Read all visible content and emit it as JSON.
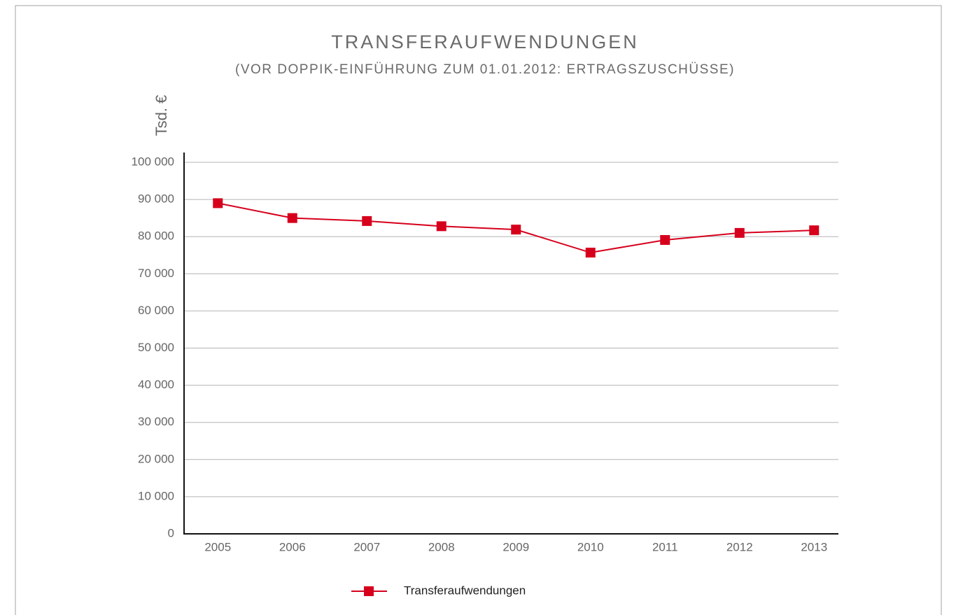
{
  "chart_data": {
    "type": "line",
    "title": "TRANSFERAUFWENDUNGEN",
    "subtitle": "(VOR DOPPIK-EINFÜHRUNG ZUM 01.01.2012: ERTRAGSZUSCHÜSSE)",
    "y_label": "Tsd. €",
    "categories": [
      "2005",
      "2006",
      "2007",
      "2008",
      "2009",
      "2010",
      "2011",
      "2012",
      "2013"
    ],
    "series": [
      {
        "name": "Transferaufwendungen",
        "color": "#d6001c",
        "values": [
          89000,
          85000,
          84200,
          82800,
          81900,
          75700,
          79100,
          81000,
          81700
        ]
      }
    ],
    "ylim": [
      0,
      100000
    ],
    "yticks": [
      0,
      {
        "value": 10000,
        "label": "10 000"
      },
      {
        "value": 20000,
        "label": "20 000"
      },
      {
        "value": 30000,
        "label": "30 000"
      },
      {
        "value": 40000,
        "label": "40 000"
      },
      {
        "value": 50000,
        "label": "50 000"
      },
      {
        "value": 60000,
        "label": "60 000"
      },
      {
        "value": 70000,
        "label": "70 000"
      },
      {
        "value": 80000,
        "label": "80 000"
      },
      {
        "value": 90000,
        "label": "90 000"
      },
      {
        "value": 100000,
        "label": "100 000"
      }
    ],
    "grid": true,
    "legend": "bottom"
  }
}
